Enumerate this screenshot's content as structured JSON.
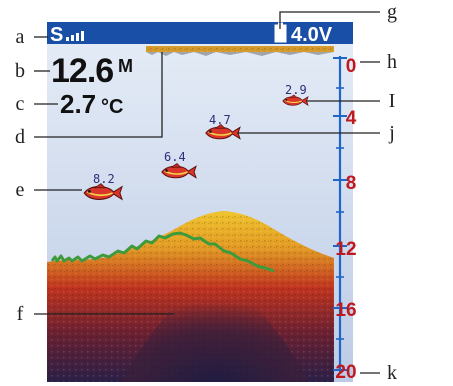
{
  "screen": {
    "sonar_symbol": "S",
    "signal_icon": "signal-bars-icon",
    "battery_icon": "battery-icon",
    "battery_voltage": "4.0V",
    "depth_value": "12.6",
    "depth_unit": "M",
    "temperature_value": "2.7",
    "temperature_unit": "°C",
    "depth_scale": [
      "0",
      "4",
      "8",
      "12",
      "16",
      "20"
    ],
    "fish": [
      {
        "label": "2.9",
        "icon": "fish-icon"
      },
      {
        "label": "4.7",
        "icon": "fish-icon"
      },
      {
        "label": "6.4",
        "icon": "fish-icon"
      },
      {
        "label": "8.2",
        "icon": "fish-icon"
      }
    ]
  },
  "callouts": {
    "a": "a",
    "b": "b",
    "c": "c",
    "d": "d",
    "e": "e",
    "f": "f",
    "g": "g",
    "h": "h",
    "i": "I",
    "j": "j",
    "k": "k"
  },
  "colors": {
    "screen_top": "#dfe7f3",
    "screen_bottom": "#b9c9e4",
    "scale_blue": "#1f66c8",
    "scale_red": "#c0181f",
    "bottom_yellow": "#e9b32a",
    "bottom_red": "#b0241a",
    "bottom_dark": "#3a2040",
    "fish_red": "#d9352a"
  }
}
